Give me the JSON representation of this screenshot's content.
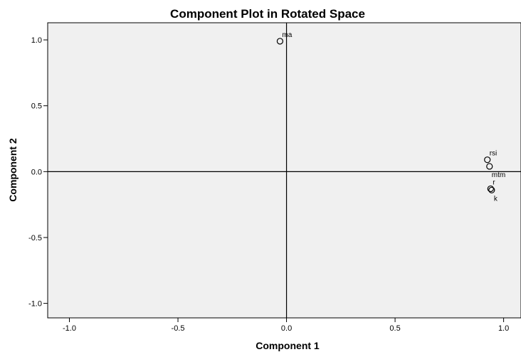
{
  "chart_data": {
    "type": "scatter",
    "title": "Component Plot in Rotated Space",
    "xlabel": "Component 1",
    "ylabel": "Component 2",
    "xlim": [
      -1.1,
      1.08
    ],
    "ylim": [
      -1.11,
      1.13
    ],
    "xticks": [
      "-1.0",
      "-0.5",
      "0.0",
      "0.5",
      "1.0"
    ],
    "xtick_values": [
      -1.0,
      -0.5,
      0.0,
      0.5,
      1.0
    ],
    "yticks": [
      "1.0",
      "0.5",
      "0.0",
      "-0.5",
      "-1.0"
    ],
    "ytick_values": [
      1.0,
      0.5,
      0.0,
      -0.5,
      -1.0
    ],
    "reference_lines": {
      "x": 0,
      "y": 0
    },
    "grid": false,
    "background": "#f0f0f0",
    "points": [
      {
        "label": "ma",
        "x": -0.03,
        "y": 0.99,
        "label_anchor": "above-right"
      },
      {
        "label": "rsi",
        "x": 0.925,
        "y": 0.09,
        "label_anchor": "above-right"
      },
      {
        "label": "mtm",
        "x": 0.935,
        "y": 0.04,
        "label_anchor": "below-right"
      },
      {
        "label": "r",
        "x": 0.94,
        "y": -0.13,
        "label_anchor": "above-right"
      },
      {
        "label": "k",
        "x": 0.945,
        "y": -0.14,
        "label_anchor": "below-right"
      }
    ]
  }
}
